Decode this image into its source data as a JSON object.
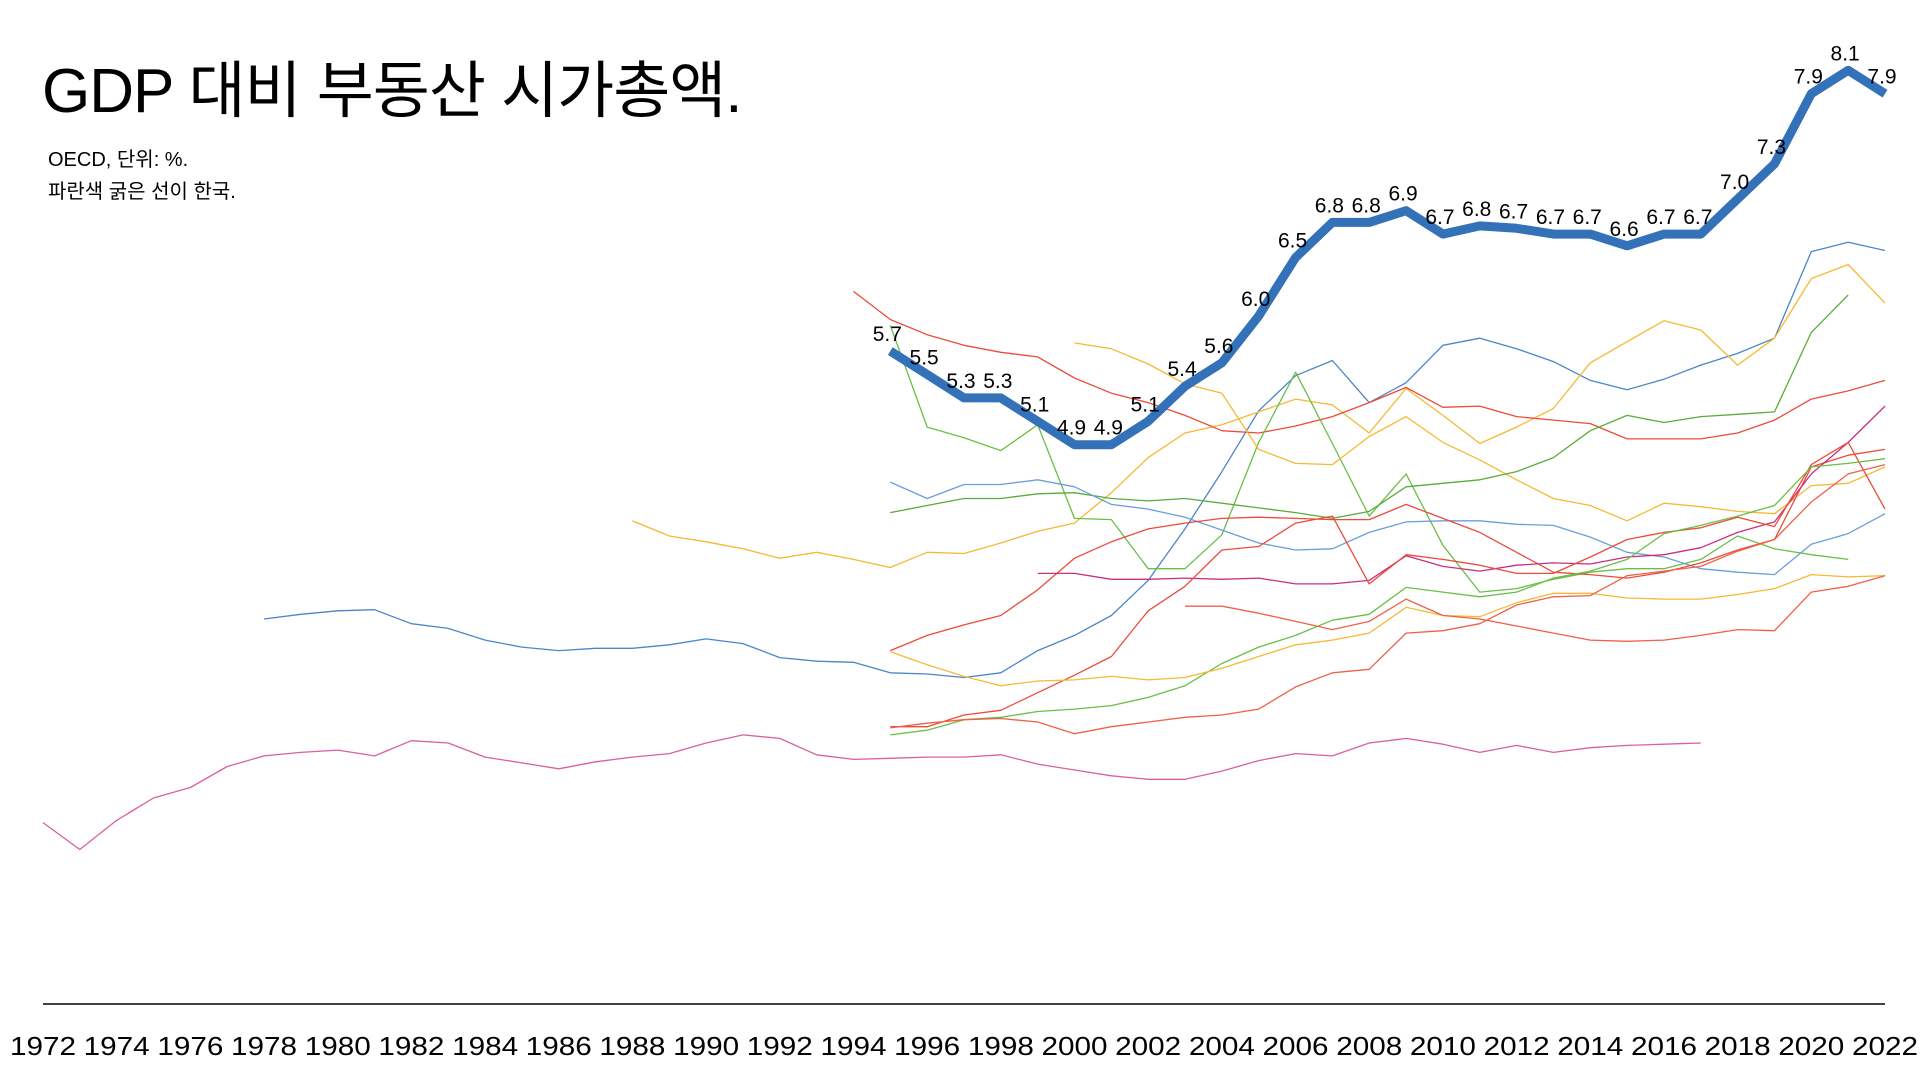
{
  "chart_data": {
    "type": "line",
    "title": "GDP 대비 부동산 시가총액.",
    "subtitle_lines": [
      "OECD, 단위: %.",
      "파란색 굵은 선이 한국."
    ],
    "xlabel": "",
    "ylabel": "",
    "xlim": [
      1972,
      2022
    ],
    "x_ticks": [
      1972,
      1974,
      1976,
      1978,
      1980,
      1982,
      1984,
      1986,
      1988,
      1990,
      1992,
      1994,
      1996,
      1998,
      2000,
      2002,
      2004,
      2006,
      2008,
      2010,
      2012,
      2014,
      2016,
      2018,
      2020,
      2022
    ],
    "grid": false,
    "highlight": {
      "name": "한국",
      "color": "#3371b8",
      "start": 1995,
      "values": [
        5.7,
        5.5,
        5.3,
        5.3,
        5.1,
        4.9,
        4.9,
        5.1,
        5.4,
        5.6,
        6.0,
        6.5,
        6.8,
        6.8,
        6.9,
        6.7,
        6.77,
        6.75,
        6.7,
        6.7,
        6.6,
        6.7,
        6.7,
        7.0,
        7.3,
        7.9,
        8.1,
        7.9
      ],
      "labels": [
        "5.7",
        "5.5",
        "5.3",
        "5.3",
        "5.1",
        "4.9",
        "4.9",
        "5.1",
        "5.4",
        "5.6",
        "6.0",
        "6.5",
        "6.8",
        "6.8",
        "6.9",
        "6.7",
        "6.8",
        "6.7",
        "6.7",
        "6.7",
        "6.6",
        "6.7",
        "6.7",
        "7.0",
        "7.3",
        "7.9",
        "8.1",
        "7.9"
      ]
    },
    "series": [
      {
        "color": "#d9609e",
        "start": 1972,
        "values": [
          1.67,
          1.44,
          1.69,
          1.88,
          1.97,
          2.15,
          2.24,
          2.27,
          2.29,
          2.24,
          2.37,
          2.35,
          2.23,
          2.18,
          2.13,
          2.19,
          2.23,
          2.26,
          2.35,
          2.42,
          2.39,
          2.25,
          2.21,
          2.22,
          2.23,
          2.23,
          2.25,
          2.17,
          2.12,
          2.07,
          2.04,
          2.04,
          2.11,
          2.2,
          2.26,
          2.24,
          2.35,
          2.39,
          2.34,
          2.27,
          2.33,
          2.27,
          2.31,
          2.33,
          2.34,
          2.35
        ]
      },
      {
        "color": "#4a86c8",
        "start": 1978,
        "values": [
          3.41,
          3.45,
          3.48,
          3.49,
          3.37,
          3.33,
          3.23,
          3.17,
          3.14,
          3.16,
          3.16,
          3.19,
          3.24,
          3.2,
          3.08,
          3.05,
          3.04,
          2.95,
          2.94,
          2.91,
          2.95,
          3.14,
          3.27,
          3.44,
          3.74,
          4.18,
          4.67,
          5.19,
          5.49,
          5.62,
          5.26,
          5.43,
          5.75,
          5.81,
          5.72,
          5.61,
          5.45,
          5.37,
          5.46,
          5.58,
          5.68,
          5.81,
          6.55,
          6.63,
          6.56
        ]
      },
      {
        "color": "#f5b935",
        "start": 1988,
        "values": [
          4.25,
          4.12,
          4.07,
          4.01,
          3.93,
          3.98,
          3.92,
          3.85,
          3.98,
          3.97,
          4.06,
          4.16,
          4.23,
          4.49,
          4.79,
          5.0,
          5.07,
          5.18,
          5.29,
          5.24,
          5.0,
          5.38,
          5.15,
          4.91,
          5.05,
          5.21,
          5.6,
          5.78,
          5.96,
          5.88,
          5.58,
          5.81,
          6.32,
          6.44,
          6.11
        ]
      },
      {
        "color": "#ec4b3a",
        "start": 1994,
        "values": [
          6.21,
          5.97,
          5.84,
          5.75,
          5.69,
          5.65,
          5.47,
          5.34,
          5.26,
          5.15,
          5.02,
          5.0,
          5.06,
          5.14,
          5.26,
          5.39,
          5.22,
          5.23,
          5.14,
          5.11,
          5.08,
          4.95,
          4.95,
          4.95,
          5.0,
          5.11,
          5.29,
          5.36,
          5.45
        ]
      },
      {
        "color": "#6abf45",
        "start": 1995,
        "values": [
          5.92,
          5.05,
          4.96,
          4.85,
          5.07,
          4.27,
          4.26,
          3.84,
          3.84,
          4.13,
          4.92,
          5.52,
          4.91,
          4.29,
          4.65,
          4.04,
          3.64,
          3.67,
          3.75,
          3.81,
          3.84,
          3.84,
          3.92,
          4.12,
          4.01,
          3.96,
          3.92
        ]
      },
      {
        "color": "#f5b935",
        "start": 2000,
        "values": [
          5.77,
          5.72,
          5.59,
          5.42,
          5.34,
          4.86,
          4.74,
          4.73,
          4.97,
          5.14,
          4.92,
          4.77,
          4.6,
          4.44,
          4.38,
          4.25,
          4.4,
          4.37,
          4.33,
          4.31,
          4.55,
          4.57,
          4.71
        ]
      },
      {
        "color": "#5aac3a",
        "start": 1995,
        "values": [
          4.32,
          4.38,
          4.44,
          4.44,
          4.48,
          4.49,
          4.44,
          4.42,
          4.44,
          4.4,
          4.36,
          4.32,
          4.27,
          4.33,
          4.54,
          4.57,
          4.6,
          4.67,
          4.79,
          5.02,
          5.15,
          5.09,
          5.14,
          5.16,
          5.18,
          5.86,
          6.18
        ]
      },
      {
        "color": "#6a9fd8",
        "start": 1995,
        "values": [
          4.58,
          4.44,
          4.56,
          4.56,
          4.6,
          4.54,
          4.39,
          4.35,
          4.28,
          4.17,
          4.06,
          4.0,
          4.01,
          4.15,
          4.24,
          4.25,
          4.25,
          4.22,
          4.21,
          4.11,
          3.98,
          3.94,
          3.84,
          3.81,
          3.79,
          4.05,
          4.14,
          4.31
        ]
      },
      {
        "color": "#ec4b3a",
        "start": 1995,
        "values": [
          3.14,
          3.27,
          3.36,
          3.44,
          3.66,
          3.93,
          4.07,
          4.18,
          4.23,
          4.27,
          4.28,
          4.27,
          4.26,
          4.26,
          4.39,
          4.27,
          4.15,
          3.98,
          3.81,
          3.79,
          3.76,
          3.81,
          3.89,
          4.0,
          4.09,
          4.71,
          4.81,
          4.86
        ]
      },
      {
        "color": "#c8307e",
        "start": 1999,
        "values": [
          3.8,
          3.8,
          3.75,
          3.75,
          3.76,
          3.75,
          3.76,
          3.71,
          3.71,
          3.74,
          3.95,
          3.86,
          3.82,
          3.87,
          3.89,
          3.88,
          3.94,
          3.96,
          4.02,
          4.15,
          4.24,
          4.65,
          4.92,
          5.23
        ]
      },
      {
        "color": "#ec4b3a",
        "start": 1995,
        "values": [
          2.49,
          2.49,
          2.59,
          2.63,
          2.78,
          2.93,
          3.09,
          3.48,
          3.69,
          4.0,
          4.03,
          4.23,
          4.29,
          3.71,
          3.96,
          3.92,
          3.87,
          3.8,
          3.8,
          3.94,
          4.09,
          4.15,
          4.19,
          4.28,
          4.2,
          4.73,
          4.92,
          4.35
        ]
      },
      {
        "color": "#6abf45",
        "start": 1995,
        "values": [
          2.42,
          2.46,
          2.55,
          2.57,
          2.62,
          2.64,
          2.67,
          2.74,
          2.84,
          3.03,
          3.17,
          3.27,
          3.4,
          3.45,
          3.68,
          3.64,
          3.6,
          3.64,
          3.76,
          3.82,
          3.92,
          4.14,
          4.21,
          4.29,
          4.38,
          4.71,
          4.74,
          4.78
        ]
      },
      {
        "color": "#f5b935",
        "start": 1995,
        "values": [
          3.13,
          3.02,
          2.92,
          2.84,
          2.88,
          2.89,
          2.92,
          2.89,
          2.91,
          2.99,
          3.09,
          3.19,
          3.23,
          3.29,
          3.51,
          3.44,
          3.43,
          3.55,
          3.63,
          3.63,
          3.59,
          3.58,
          3.58,
          3.62,
          3.67,
          3.79,
          3.77,
          3.78
        ]
      },
      {
        "color": "#f0604a",
        "start": 1995,
        "values": [
          2.48,
          2.52,
          2.55,
          2.56,
          2.53,
          2.43,
          2.49,
          2.53,
          2.57,
          2.59,
          2.64,
          2.83,
          2.95,
          2.98,
          3.29,
          3.31,
          3.37,
          3.53,
          3.6,
          3.61,
          3.78,
          3.82,
          3.86,
          3.99,
          4.09,
          4.41,
          4.65,
          4.73
        ]
      },
      {
        "color": "#f0604a",
        "start": 2003,
        "values": [
          3.52,
          3.52,
          3.46,
          3.39,
          3.32,
          3.39,
          3.58,
          3.44,
          3.41,
          3.35,
          3.29,
          3.23,
          3.22,
          3.23,
          3.27,
          3.32,
          3.31,
          3.64,
          3.69,
          3.78
        ]
      }
    ]
  }
}
